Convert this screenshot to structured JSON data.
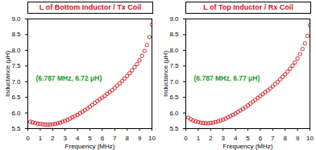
{
  "chart_data": [
    {
      "type": "scatter",
      "title": "L of Bottom Inductor / Tx Coil",
      "annotation": "(6.787 MHz, 6.72 μH)",
      "x_label": "Frequency (MHz)",
      "y_label": "Inductance (μH)",
      "x": [
        0.2,
        0.4,
        0.6,
        0.8,
        1.0,
        1.2,
        1.4,
        1.6,
        1.8,
        2.0,
        2.2,
        2.4,
        2.6,
        2.8,
        3.0,
        3.2,
        3.4,
        3.6,
        3.8,
        4.0,
        4.2,
        4.4,
        4.6,
        4.8,
        5.0,
        5.2,
        5.4,
        5.6,
        5.8,
        6.0,
        6.2,
        6.4,
        6.6,
        6.8,
        7.0,
        7.2,
        7.4,
        7.6,
        7.8,
        8.0,
        8.2,
        8.4,
        8.6,
        8.8,
        9.0,
        9.2,
        9.4,
        9.6,
        9.8,
        10.0
      ],
      "values": [
        5.72,
        5.7,
        5.68,
        5.66,
        5.65,
        5.64,
        5.63,
        5.63,
        5.63,
        5.64,
        5.65,
        5.67,
        5.69,
        5.72,
        5.75,
        5.78,
        5.82,
        5.86,
        5.9,
        5.94,
        5.99,
        6.04,
        6.09,
        6.14,
        6.2,
        6.26,
        6.32,
        6.38,
        6.44,
        6.49,
        6.55,
        6.61,
        6.67,
        6.73,
        6.8,
        6.87,
        6.94,
        7.02,
        7.1,
        7.18,
        7.27,
        7.36,
        7.46,
        7.56,
        7.68,
        7.82,
        7.98,
        8.17,
        8.42,
        8.82
      ],
      "color": "#d0121b",
      "marker": "open_circle",
      "xlim": [
        0,
        10
      ],
      "xticks": [
        0,
        1,
        2,
        3,
        4,
        5,
        6,
        7,
        8,
        9,
        10
      ],
      "ylim": [
        5.5,
        9.0
      ],
      "yticks": [
        5.5,
        {
          "value": 6,
          "label": "6.0"
        },
        6.5,
        {
          "value": 7,
          "label": "7.0"
        },
        7.5,
        {
          "value": 8,
          "label": "8.0"
        },
        8.5,
        {
          "value": 9,
          "label": "9.0"
        }
      ],
      "grid": false
    },
    {
      "type": "scatter",
      "title": "L of Top Inductor / Rx Coil",
      "annotation": "(6.787 MHz, 6.77 μH)",
      "x_label": "Frequency (MHz)",
      "y_label": "Inductance (μH)",
      "x": [
        0.2,
        0.4,
        0.6,
        0.8,
        1.0,
        1.2,
        1.4,
        1.6,
        1.8,
        2.0,
        2.2,
        2.4,
        2.6,
        2.8,
        3.0,
        3.2,
        3.4,
        3.6,
        3.8,
        4.0,
        4.2,
        4.4,
        4.6,
        4.8,
        5.0,
        5.2,
        5.4,
        5.6,
        5.8,
        6.0,
        6.2,
        6.4,
        6.6,
        6.8,
        7.0,
        7.2,
        7.4,
        7.6,
        7.8,
        8.0,
        8.2,
        8.4,
        8.6,
        8.8,
        9.0,
        9.2,
        9.4,
        9.6,
        9.8,
        10.0
      ],
      "values": [
        5.85,
        5.8,
        5.76,
        5.73,
        5.71,
        5.69,
        5.68,
        5.67,
        5.67,
        5.68,
        5.69,
        5.71,
        5.73,
        5.76,
        5.79,
        5.82,
        5.86,
        5.9,
        5.94,
        5.98,
        6.03,
        6.08,
        6.13,
        6.18,
        6.24,
        6.3,
        6.36,
        6.42,
        6.48,
        6.54,
        6.6,
        6.66,
        6.72,
        6.78,
        6.85,
        6.92,
        6.99,
        7.07,
        7.15,
        7.23,
        7.32,
        7.41,
        7.51,
        7.61,
        7.74,
        7.88,
        8.04,
        8.22,
        8.46,
        8.8
      ],
      "color": "#d0121b",
      "marker": "open_circle",
      "xlim": [
        0,
        10
      ],
      "xticks": [
        0,
        1,
        2,
        3,
        4,
        5,
        6,
        7,
        8,
        9,
        10
      ],
      "ylim": [
        5.5,
        9.0
      ],
      "yticks": [
        5.5,
        {
          "value": 6,
          "label": "6.0"
        },
        6.5,
        {
          "value": 7,
          "label": "7.0"
        },
        7.5,
        {
          "value": 8,
          "label": "8.0"
        },
        8.5,
        {
          "value": 9,
          "label": "9.0"
        }
      ],
      "grid": false
    }
  ]
}
